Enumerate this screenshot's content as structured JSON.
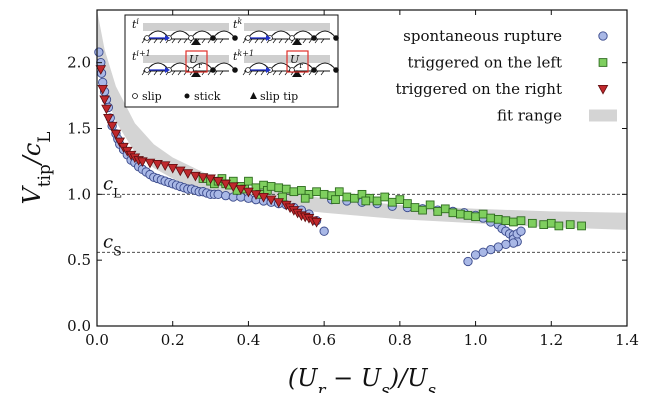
{
  "chart_data": {
    "type": "scatter",
    "xlabel": "(U_r − U_s)/U_s",
    "ylabel": "V_tip/c_L",
    "xlim": [
      0.0,
      1.4
    ],
    "ylim": [
      0.0,
      2.4
    ],
    "x_ticks": [
      "0.0",
      "0.2",
      "0.4",
      "0.6",
      "0.8",
      "1.0",
      "1.2",
      "1.4"
    ],
    "y_ticks": [
      "0.0",
      "0.5",
      "1.0",
      "1.5",
      "2.0"
    ],
    "grid": false,
    "legend_position": "top-right",
    "reference_lines": [
      {
        "label": "c_L",
        "y": 1.0
      },
      {
        "label": "c_S",
        "y": 0.56
      }
    ],
    "fit_range": {
      "name": "fit range",
      "x": [
        0.0,
        0.02,
        0.05,
        0.1,
        0.15,
        0.2,
        0.3,
        0.4,
        0.5,
        0.6,
        0.8,
        1.0,
        1.2,
        1.4
      ],
      "lower": [
        2.0,
        1.78,
        1.55,
        1.32,
        1.2,
        1.12,
        1.0,
        0.94,
        0.89,
        0.86,
        0.81,
        0.78,
        0.75,
        0.73
      ],
      "upper": [
        2.4,
        2.1,
        1.82,
        1.54,
        1.38,
        1.28,
        1.14,
        1.06,
        1.01,
        0.97,
        0.92,
        0.89,
        0.87,
        0.86
      ]
    },
    "series": [
      {
        "name": "spontaneous rupture",
        "marker": "circle",
        "color": "#a9b8e6",
        "edge": "#3a4a8c",
        "x": [
          0.005,
          0.01,
          0.012,
          0.015,
          0.02,
          0.025,
          0.03,
          0.035,
          0.04,
          0.05,
          0.055,
          0.06,
          0.07,
          0.08,
          0.09,
          0.1,
          0.11,
          0.12,
          0.13,
          0.14,
          0.15,
          0.16,
          0.17,
          0.18,
          0.19,
          0.2,
          0.21,
          0.22,
          0.23,
          0.24,
          0.25,
          0.26,
          0.27,
          0.28,
          0.29,
          0.3,
          0.31,
          0.32,
          0.34,
          0.36,
          0.38,
          0.4,
          0.42,
          0.44,
          0.46,
          0.48,
          0.5,
          0.52,
          0.54,
          0.56,
          0.58,
          0.6,
          0.62,
          0.66,
          0.7,
          0.74,
          0.78,
          0.82,
          0.86,
          0.9,
          0.94,
          0.97,
          1.0,
          1.02,
          1.04,
          1.06,
          1.07,
          1.08,
          1.09,
          1.1,
          1.1,
          1.11,
          1.11,
          1.12,
          1.1,
          1.08,
          1.06,
          1.04,
          1.02,
          1.0,
          0.98
        ],
        "y": [
          2.08,
          2.0,
          1.92,
          1.85,
          1.78,
          1.72,
          1.66,
          1.58,
          1.52,
          1.46,
          1.42,
          1.38,
          1.34,
          1.3,
          1.26,
          1.24,
          1.21,
          1.19,
          1.17,
          1.15,
          1.13,
          1.12,
          1.11,
          1.1,
          1.09,
          1.08,
          1.07,
          1.06,
          1.05,
          1.04,
          1.04,
          1.03,
          1.02,
          1.02,
          1.01,
          1.0,
          1.0,
          1.0,
          0.99,
          0.98,
          0.98,
          0.97,
          0.96,
          0.95,
          0.94,
          0.93,
          0.92,
          0.9,
          0.88,
          0.85,
          0.8,
          0.72,
          0.96,
          0.95,
          0.94,
          0.93,
          0.91,
          0.9,
          0.89,
          0.88,
          0.87,
          0.86,
          0.84,
          0.82,
          0.79,
          0.77,
          0.74,
          0.72,
          0.7,
          0.69,
          0.66,
          0.64,
          0.7,
          0.72,
          0.63,
          0.62,
          0.6,
          0.58,
          0.56,
          0.54,
          0.49
        ]
      },
      {
        "name": "triggered on the left",
        "marker": "square",
        "color": "#7fcf5f",
        "edge": "#2e6b1f",
        "x": [
          0.28,
          0.3,
          0.31,
          0.32,
          0.33,
          0.34,
          0.35,
          0.36,
          0.38,
          0.39,
          0.4,
          0.42,
          0.44,
          0.45,
          0.46,
          0.48,
          0.5,
          0.52,
          0.54,
          0.56,
          0.58,
          0.6,
          0.62,
          0.64,
          0.66,
          0.68,
          0.7,
          0.72,
          0.74,
          0.76,
          0.78,
          0.8,
          0.82,
          0.84,
          0.86,
          0.88,
          0.9,
          0.92,
          0.94,
          0.96,
          0.98,
          1.0,
          1.02,
          1.04,
          1.06,
          1.08,
          1.1,
          1.12,
          1.15,
          1.18,
          1.2,
          1.22,
          1.25,
          1.28,
          0.37,
          0.43,
          0.49,
          0.55,
          0.63,
          0.71
        ],
        "y": [
          1.12,
          1.1,
          1.08,
          1.1,
          1.12,
          1.08,
          1.07,
          1.1,
          1.06,
          1.04,
          1.1,
          1.05,
          1.07,
          1.03,
          1.06,
          1.05,
          1.04,
          1.02,
          1.03,
          1.0,
          1.02,
          1.0,
          0.99,
          1.02,
          0.98,
          0.97,
          1.0,
          0.97,
          0.95,
          0.98,
          0.94,
          0.96,
          0.93,
          0.9,
          0.88,
          0.92,
          0.87,
          0.89,
          0.86,
          0.85,
          0.84,
          0.83,
          0.85,
          0.82,
          0.81,
          0.8,
          0.79,
          0.8,
          0.78,
          0.77,
          0.78,
          0.76,
          0.77,
          0.76,
          1.03,
          1.0,
          0.98,
          0.97,
          0.96,
          0.95
        ]
      },
      {
        "name": "triggered on the right",
        "marker": "triangle-down",
        "color": "#c0282c",
        "edge": "#5e0e10",
        "x": [
          0.01,
          0.015,
          0.02,
          0.025,
          0.03,
          0.04,
          0.05,
          0.06,
          0.07,
          0.08,
          0.09,
          0.1,
          0.11,
          0.12,
          0.14,
          0.16,
          0.18,
          0.2,
          0.22,
          0.24,
          0.26,
          0.28,
          0.3,
          0.32,
          0.34,
          0.36,
          0.38,
          0.4,
          0.42,
          0.44,
          0.46,
          0.48,
          0.5,
          0.51,
          0.52,
          0.53,
          0.54,
          0.55,
          0.56,
          0.57,
          0.58
        ],
        "y": [
          1.95,
          1.8,
          1.72,
          1.65,
          1.58,
          1.52,
          1.46,
          1.4,
          1.36,
          1.33,
          1.3,
          1.28,
          1.26,
          1.25,
          1.24,
          1.23,
          1.22,
          1.2,
          1.18,
          1.16,
          1.14,
          1.13,
          1.12,
          1.1,
          1.08,
          1.06,
          1.04,
          1.02,
          1.0,
          0.98,
          0.96,
          0.94,
          0.92,
          0.9,
          0.88,
          0.86,
          0.84,
          0.83,
          0.82,
          0.8,
          0.79
        ]
      }
    ],
    "legend": [
      {
        "label": "spontaneous rupture",
        "marker": "circle"
      },
      {
        "label": "triggered on the left",
        "marker": "square"
      },
      {
        "label": "triggered on the right",
        "marker": "triangle-down"
      },
      {
        "label": "fit range",
        "marker": "band"
      }
    ],
    "inset": {
      "frame_labels": [
        "t^i",
        "t^k",
        "t^{i+1}",
        "t^{k+1}"
      ],
      "panel_marks": [
        "U_r",
        "U_r"
      ],
      "legend": [
        {
          "label": "slip",
          "marker": "open-circle"
        },
        {
          "label": "stick",
          "marker": "filled-circle"
        },
        {
          "label": "slip tip",
          "marker": "filled-triangle"
        }
      ]
    },
    "colors": {
      "band": "#d4d4d4",
      "reference_line": "#333333",
      "inset_box": "#e0302a",
      "inset_arrow": "#2233cc"
    }
  }
}
